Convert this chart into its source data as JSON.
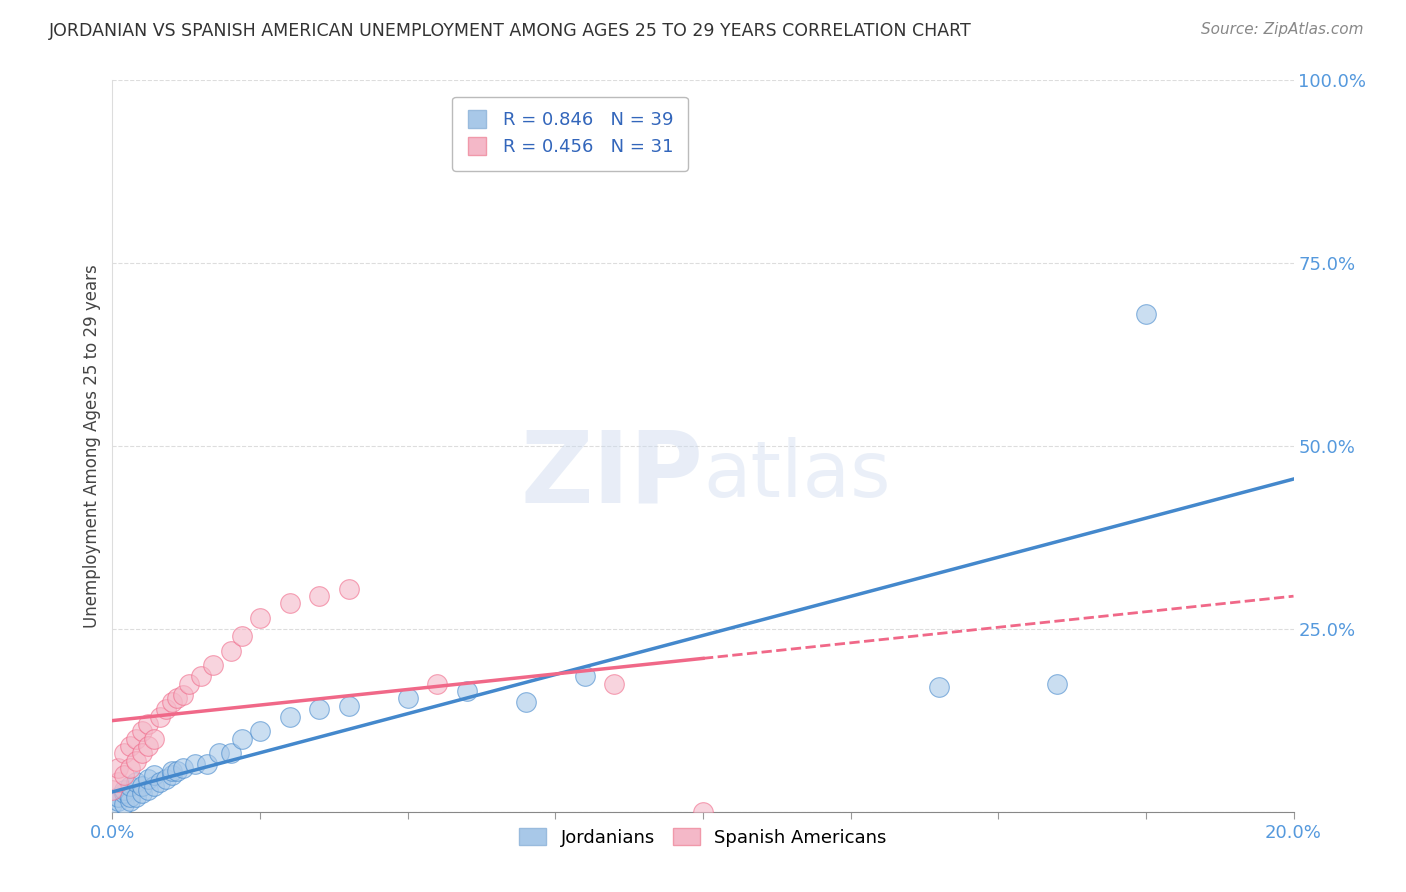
{
  "title": "JORDANIAN VS SPANISH AMERICAN UNEMPLOYMENT AMONG AGES 25 TO 29 YEARS CORRELATION CHART",
  "source": "Source: ZipAtlas.com",
  "ylabel": "Unemployment Among Ages 25 to 29 years",
  "xlim": [
    0.0,
    0.2
  ],
  "ylim": [
    0.0,
    1.0
  ],
  "y_ticks": [
    0.0,
    0.25,
    0.5,
    0.75,
    1.0
  ],
  "y_tick_labels": [
    "",
    "25.0%",
    "50.0%",
    "75.0%",
    "100.0%"
  ],
  "legend1_r": "0.846",
  "legend1_n": "39",
  "legend2_r": "0.456",
  "legend2_n": "31",
  "blue_color": "#a8c8e8",
  "pink_color": "#f4b8c8",
  "blue_line_color": "#4488cc",
  "pink_line_color": "#f06888",
  "jordanians_x": [
    0.0,
    0.001,
    0.001,
    0.002,
    0.002,
    0.002,
    0.003,
    0.003,
    0.003,
    0.004,
    0.004,
    0.005,
    0.005,
    0.006,
    0.006,
    0.007,
    0.007,
    0.008,
    0.009,
    0.01,
    0.01,
    0.011,
    0.012,
    0.014,
    0.016,
    0.018,
    0.02,
    0.022,
    0.025,
    0.03,
    0.035,
    0.04,
    0.05,
    0.06,
    0.07,
    0.08,
    0.14,
    0.16,
    0.175
  ],
  "jordanians_y": [
    0.01,
    0.015,
    0.02,
    0.01,
    0.025,
    0.03,
    0.015,
    0.02,
    0.035,
    0.02,
    0.04,
    0.025,
    0.035,
    0.03,
    0.045,
    0.035,
    0.05,
    0.04,
    0.045,
    0.05,
    0.055,
    0.055,
    0.06,
    0.065,
    0.065,
    0.08,
    0.08,
    0.1,
    0.11,
    0.13,
    0.14,
    0.145,
    0.155,
    0.165,
    0.15,
    0.185,
    0.17,
    0.175,
    0.68
  ],
  "spanish_x": [
    0.0,
    0.001,
    0.001,
    0.002,
    0.002,
    0.003,
    0.003,
    0.004,
    0.004,
    0.005,
    0.005,
    0.006,
    0.006,
    0.007,
    0.008,
    0.009,
    0.01,
    0.011,
    0.012,
    0.013,
    0.015,
    0.017,
    0.02,
    0.022,
    0.025,
    0.03,
    0.035,
    0.04,
    0.055,
    0.085,
    0.1
  ],
  "spanish_y": [
    0.03,
    0.04,
    0.06,
    0.05,
    0.08,
    0.06,
    0.09,
    0.07,
    0.1,
    0.08,
    0.11,
    0.09,
    0.12,
    0.1,
    0.13,
    0.14,
    0.15,
    0.155,
    0.16,
    0.175,
    0.185,
    0.2,
    0.22,
    0.24,
    0.265,
    0.285,
    0.295,
    0.305,
    0.175,
    0.175,
    0.0
  ]
}
